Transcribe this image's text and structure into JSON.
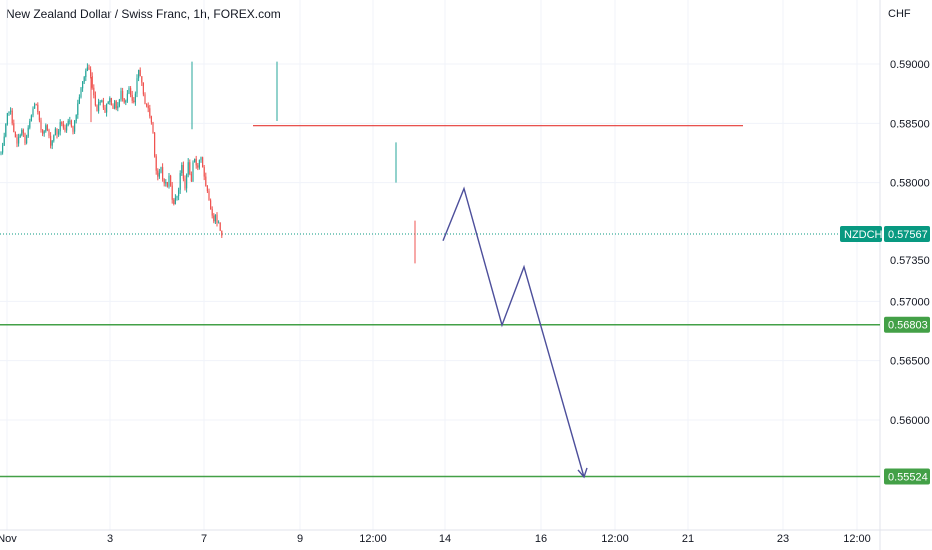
{
  "chart_data": {
    "type": "candlestick",
    "title": "New Zealand Dollar / Swiss Franc, 1h, FOREX.com",
    "currency": "CHF",
    "symbol": "NZDCHF",
    "last_price": 0.57567,
    "y_ticks": [
      0.59,
      0.585,
      0.58,
      0.5735,
      0.57,
      0.565,
      0.56
    ],
    "y_tick_labels": [
      "0.59000",
      "0.58500",
      "0.58000",
      "0.57350",
      "0.57000",
      "0.56500",
      "0.56000"
    ],
    "ylim": [
      0.5532,
      0.5957
    ],
    "x_tick_labels": [
      "Nov",
      "3",
      "7",
      "9",
      "12:00",
      "14",
      "16",
      "12:00",
      "21",
      "23",
      "12:00"
    ],
    "price_series": [
      [
        0,
        0.5825
      ],
      [
        2,
        0.583
      ],
      [
        4,
        0.5842
      ],
      [
        6,
        0.5855
      ],
      [
        8,
        0.5862
      ],
      [
        10,
        0.5858
      ],
      [
        12,
        0.5848
      ],
      [
        14,
        0.5838
      ],
      [
        16,
        0.5832
      ],
      [
        18,
        0.5838
      ],
      [
        20,
        0.5845
      ],
      [
        22,
        0.5842
      ],
      [
        24,
        0.5833
      ],
      [
        26,
        0.584
      ],
      [
        28,
        0.5848
      ],
      [
        30,
        0.5855
      ],
      [
        32,
        0.5862
      ],
      [
        34,
        0.5868
      ],
      [
        36,
        0.5862
      ],
      [
        38,
        0.5852
      ],
      [
        40,
        0.5845
      ],
      [
        42,
        0.5842
      ],
      [
        44,
        0.5848
      ],
      [
        46,
        0.5846
      ],
      [
        48,
        0.5838
      ],
      [
        50,
        0.5832
      ],
      [
        52,
        0.5838
      ],
      [
        54,
        0.5845
      ],
      [
        56,
        0.5841
      ],
      [
        58,
        0.5845
      ],
      [
        60,
        0.5852
      ],
      [
        62,
        0.5848
      ],
      [
        64,
        0.5842
      ],
      [
        66,
        0.5848
      ],
      [
        68,
        0.5852
      ],
      [
        70,
        0.585
      ],
      [
        72,
        0.5845
      ],
      [
        74,
        0.5852
      ],
      [
        76,
        0.5862
      ],
      [
        78,
        0.5872
      ],
      [
        80,
        0.5878
      ],
      [
        82,
        0.5886
      ],
      [
        84,
        0.5892
      ],
      [
        86,
        0.5898
      ],
      [
        88,
        0.5895
      ],
      [
        90,
        0.5888
      ],
      [
        92,
        0.5878
      ],
      [
        94,
        0.5868
      ],
      [
        96,
        0.5862
      ],
      [
        98,
        0.5868
      ],
      [
        100,
        0.5872
      ],
      [
        102,
        0.5866
      ],
      [
        104,
        0.586
      ],
      [
        106,
        0.5866
      ],
      [
        108,
        0.5872
      ],
      [
        110,
        0.5868
      ],
      [
        112,
        0.5864
      ],
      [
        114,
        0.5867
      ],
      [
        116,
        0.5862
      ],
      [
        118,
        0.5868
      ],
      [
        120,
        0.5876
      ],
      [
        122,
        0.5872
      ],
      [
        124,
        0.5868
      ],
      [
        126,
        0.5874
      ],
      [
        128,
        0.5878
      ],
      [
        130,
        0.5872
      ],
      [
        132,
        0.5865
      ],
      [
        134,
        0.587
      ],
      [
        136,
        0.5886
      ],
      [
        138,
        0.5897
      ],
      [
        140,
        0.5888
      ],
      [
        142,
        0.5874
      ],
      [
        144,
        0.5868
      ],
      [
        146,
        0.5865
      ],
      [
        148,
        0.5859
      ],
      [
        150,
        0.5853
      ],
      [
        152,
        0.5842
      ],
      [
        154,
        0.582
      ],
      [
        156,
        0.5805
      ],
      [
        158,
        0.5805
      ],
      [
        160,
        0.5812
      ],
      [
        162,
        0.5801
      ],
      [
        164,
        0.5802
      ],
      [
        166,
        0.5795
      ],
      [
        168,
        0.5805
      ],
      [
        170,
        0.5795
      ],
      [
        172,
        0.5783
      ],
      [
        174,
        0.5785
      ],
      [
        176,
        0.579
      ],
      [
        178,
        0.5796
      ],
      [
        180,
        0.5818
      ],
      [
        182,
        0.5805
      ],
      [
        184,
        0.5795
      ],
      [
        186,
        0.5812
      ],
      [
        188,
        0.5818
      ],
      [
        190,
        0.5795
      ],
      [
        192,
        0.5815
      ],
      [
        194,
        0.582
      ],
      [
        196,
        0.5812
      ],
      [
        198,
        0.5818
      ],
      [
        200,
        0.5822
      ],
      [
        202,
        0.5812
      ],
      [
        204,
        0.5798
      ],
      [
        206,
        0.5792
      ],
      [
        208,
        0.5786
      ],
      [
        210,
        0.5778
      ],
      [
        212,
        0.5765
      ],
      [
        214,
        0.5776
      ],
      [
        216,
        0.5768
      ],
      [
        218,
        0.5765
      ],
      [
        220,
        0.5758
      ],
      [
        222,
        0.5757
      ]
    ],
    "lines": [
      {
        "name": "resistance",
        "value": 0.5848,
        "color": "#e53935"
      },
      {
        "name": "support-1",
        "value": 0.56803,
        "label": "0.56803",
        "color": "#43a047"
      },
      {
        "name": "support-2",
        "value": 0.55524,
        "label": "0.55524",
        "color": "#43a047"
      }
    ],
    "projection": {
      "color": "#4d4f9b",
      "points": [
        0.5751,
        0.5795,
        0.568,
        0.5729,
        0.5552
      ]
    },
    "colors": {
      "up": "#26a69a",
      "down": "#ef5350",
      "last": "#089981"
    }
  }
}
